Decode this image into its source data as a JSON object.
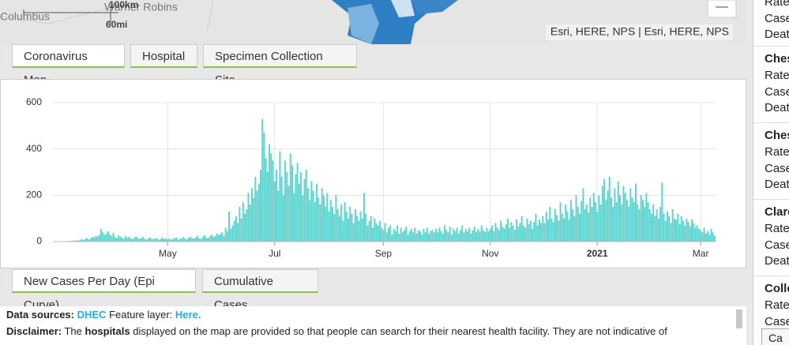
{
  "map": {
    "labels": [
      "Columbus",
      "Warner Robins"
    ],
    "scale": [
      "100km",
      "60mi"
    ],
    "attribution": "Esri, HERE, NPS | Esri, HERE, NPS",
    "zoom_out": "—"
  },
  "map_tabs": [
    "Coronavirus Map",
    "Hospital",
    "Specimen Collection Site"
  ],
  "chart_data": {
    "type": "bar",
    "color": "#5fd4cf",
    "grid": true,
    "ylim": [
      0,
      600
    ],
    "yticks": [
      0,
      200,
      400,
      600
    ],
    "categories": [
      null,
      null,
      null,
      null,
      null,
      null,
      null,
      null,
      null,
      null,
      null,
      null,
      null,
      null,
      null,
      null,
      null,
      null,
      null,
      null,
      null,
      null,
      null,
      null,
      null,
      null,
      null,
      null,
      null,
      null,
      null,
      null,
      null,
      null,
      null,
      null,
      null,
      null,
      null,
      null,
      null,
      null,
      null,
      null,
      null,
      null,
      null,
      null,
      null,
      null,
      null,
      null,
      null,
      null,
      null,
      null,
      null,
      null,
      null,
      null,
      null,
      null,
      null,
      null,
      null,
      "May",
      null,
      null,
      null,
      null,
      null,
      null,
      null,
      null,
      null,
      null,
      null,
      null,
      null,
      null,
      null,
      null,
      null,
      null,
      null,
      null,
      null,
      null,
      null,
      null,
      null,
      null,
      null,
      null,
      null,
      null,
      null,
      null,
      null,
      null,
      null,
      null,
      null,
      null,
      null,
      null,
      null,
      null,
      null,
      null,
      null,
      null,
      null,
      null,
      null,
      null,
      null,
      null,
      null,
      null,
      null,
      null,
      null,
      null,
      null,
      null,
      "Jul",
      null,
      null,
      null,
      null,
      null,
      null,
      null,
      null,
      null,
      null,
      null,
      null,
      null,
      null,
      null,
      null,
      null,
      null,
      null,
      null,
      null,
      null,
      null,
      null,
      null,
      null,
      null,
      null,
      null,
      null,
      null,
      null,
      null,
      null,
      null,
      null,
      null,
      null,
      null,
      null,
      null,
      null,
      null,
      null,
      null,
      null,
      null,
      null,
      null,
      null,
      null,
      null,
      null,
      null,
      null,
      null,
      null,
      null,
      null,
      null,
      null,
      "Sep",
      null,
      null,
      null,
      null,
      null,
      null,
      null,
      null,
      null,
      null,
      null,
      null,
      null,
      null,
      null,
      null,
      null,
      null,
      null,
      null,
      null,
      null,
      null,
      null,
      null,
      null,
      null,
      null,
      null,
      null,
      null,
      null,
      null,
      null,
      null,
      null,
      null,
      null,
      null,
      null,
      null,
      null,
      null,
      null,
      null,
      null,
      null,
      null,
      null,
      null,
      null,
      null,
      null,
      null,
      null,
      null,
      null,
      null,
      null,
      null,
      "Nov",
      null,
      null,
      null,
      null,
      null,
      null,
      null,
      null,
      null,
      null,
      null,
      null,
      null,
      null,
      null,
      null,
      null,
      null,
      null,
      null,
      null,
      null,
      null,
      null,
      null,
      null,
      null,
      null,
      null,
      null,
      null,
      null,
      null,
      null,
      null,
      null,
      null,
      null,
      null,
      null,
      null,
      null,
      null,
      null,
      null,
      null,
      null,
      null,
      null,
      null,
      null,
      null,
      null,
      null,
      null,
      null,
      null,
      null,
      null,
      null,
      "2021",
      null,
      null,
      null,
      null,
      null,
      null,
      null,
      null,
      null,
      null,
      null,
      null,
      null,
      null,
      null,
      null,
      null,
      null,
      null,
      null,
      null,
      null,
      null,
      null,
      null,
      null,
      null,
      null,
      null,
      null,
      null,
      null,
      null,
      null,
      null,
      null,
      null,
      null,
      null,
      null,
      null,
      null,
      null,
      null,
      null,
      null,
      null,
      null,
      null,
      null,
      null,
      null,
      null,
      null,
      null,
      null,
      null,
      null,
      "Mar",
      null,
      null,
      null,
      null,
      null,
      null,
      null,
      null
    ],
    "values": [
      0,
      0,
      1,
      0,
      0,
      1,
      0,
      2,
      1,
      3,
      2,
      5,
      3,
      6,
      4,
      8,
      10,
      7,
      12,
      15,
      9,
      14,
      20,
      18,
      25,
      22,
      30,
      55,
      40,
      28,
      35,
      45,
      30,
      25,
      38,
      20,
      15,
      28,
      22,
      18,
      12,
      25,
      16,
      20,
      14,
      10,
      18,
      22,
      15,
      12,
      16,
      20,
      11,
      9,
      14,
      18,
      12,
      10,
      15,
      13,
      8,
      12,
      17,
      11,
      14,
      10,
      13,
      8,
      12,
      15,
      18,
      9,
      11,
      14,
      20,
      12,
      10,
      16,
      22,
      15,
      13,
      18,
      25,
      14,
      12,
      20,
      28,
      17,
      15,
      22,
      30,
      20,
      24,
      35,
      28,
      32,
      40,
      25,
      60,
      45,
      130,
      55,
      70,
      90,
      110,
      80,
      150,
      100,
      170,
      120,
      140,
      210,
      160,
      230,
      190,
      280,
      220,
      250,
      310,
      530,
      470,
      360,
      300,
      420,
      380,
      350,
      260,
      310,
      220,
      390,
      280,
      200,
      350,
      300,
      240,
      380,
      330,
      210,
      290,
      340,
      250,
      300,
      200,
      270,
      310,
      230,
      180,
      260,
      220,
      170,
      250,
      190,
      160,
      230,
      200,
      150,
      210,
      130,
      180,
      150,
      120,
      200,
      140,
      110,
      160,
      90,
      170,
      130,
      100,
      150,
      120,
      80,
      140,
      110,
      90,
      130,
      100,
      210,
      120,
      70,
      90,
      110,
      60,
      100,
      80,
      70,
      90,
      60,
      50,
      80,
      40,
      60,
      70,
      30,
      55,
      45,
      70,
      35,
      60,
      40,
      50,
      65,
      30,
      45,
      55,
      40,
      60,
      35,
      50,
      45,
      30,
      55,
      40,
      60,
      35,
      45,
      50,
      40,
      55,
      40,
      60,
      45,
      35,
      70,
      50,
      40,
      65,
      30,
      55,
      45,
      60,
      35,
      50,
      70,
      40,
      55,
      45,
      60,
      35,
      50,
      65,
      40,
      55,
      45,
      70,
      50,
      40,
      60,
      45,
      55,
      70,
      45,
      80,
      60,
      50,
      90,
      65,
      55,
      75,
      100,
      60,
      85,
      70,
      50,
      95,
      65,
      80,
      110,
      70,
      60,
      100,
      75,
      90,
      55,
      85,
      120,
      70,
      95,
      80,
      110,
      80,
      130,
      95,
      150,
      100,
      85,
      140,
      115,
      90,
      170,
      120,
      100,
      160,
      130,
      95,
      180,
      140,
      110,
      200,
      150,
      120,
      175,
      230,
      140,
      160,
      125,
      190,
      150,
      210,
      170,
      130,
      200,
      160,
      240,
      270,
      180,
      220,
      280,
      190,
      150,
      230,
      170,
      260,
      200,
      160,
      240,
      210,
      180,
      150,
      230,
      190,
      170,
      250,
      160,
      140,
      200,
      180,
      150,
      210,
      170,
      140,
      120,
      160,
      110,
      140,
      100,
      150,
      255,
      120,
      90,
      130,
      110,
      80,
      140,
      100,
      95,
      120,
      75,
      110,
      90,
      70,
      100,
      85,
      65,
      95,
      80,
      60,
      70,
      55,
      50,
      40,
      60,
      35,
      45,
      30,
      55,
      40,
      25
    ]
  },
  "chart_tabs": [
    "New Cases Per Day (Epi Curve)",
    "Cumulative Cases"
  ],
  "info": {
    "sources_label": "Data sources:",
    "sources_link": "DHEC",
    "layer_label": "Feature layer:",
    "layer_link": "Here.",
    "disclaimer_label": "Disclaimer:",
    "disclaimer_a": "The",
    "disclaimer_bold": "hospitals",
    "disclaimer_b": "displayed on the map are provided so that people can search for their nearest health facility. They are not indicative of"
  },
  "side_panel": {
    "top_lines": [
      "Rate",
      "Case",
      "Deat"
    ],
    "items": [
      {
        "name": "Ches",
        "lines": [
          "Rate",
          "Case",
          "Deat"
        ]
      },
      {
        "name": "Ches",
        "lines": [
          "Rate",
          "Case",
          "Deat"
        ]
      },
      {
        "name": "Clare",
        "lines": [
          "Rate",
          "Case",
          "Deat"
        ]
      },
      {
        "name": "Colle",
        "lines": [
          "Rate",
          "Case"
        ]
      }
    ],
    "button": "Ca"
  }
}
